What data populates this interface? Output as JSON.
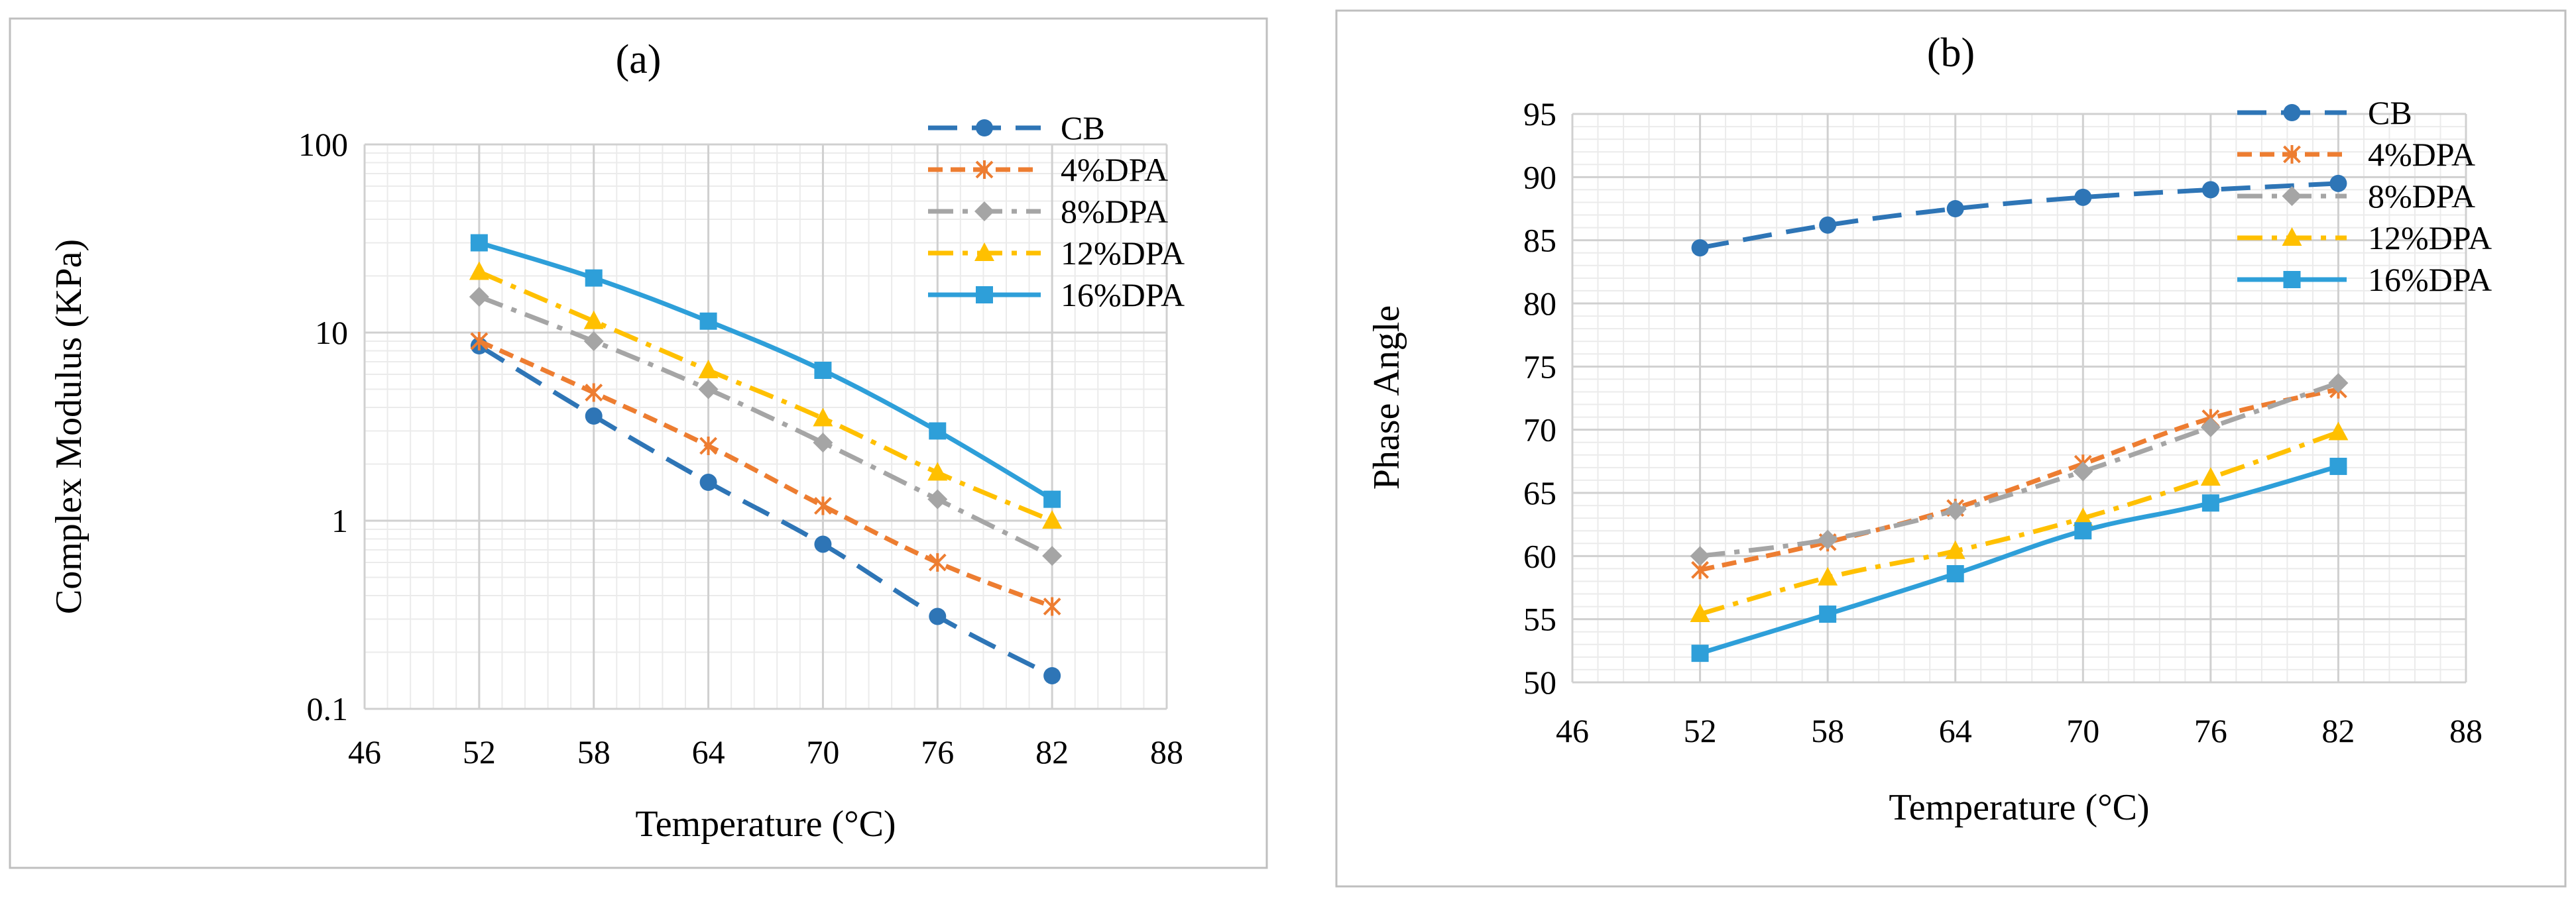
{
  "chart_data": [
    {
      "type": "line",
      "title": "(a)",
      "xlabel": "Temperature (°C)",
      "ylabel": "Complex Modulus (KPa)",
      "xlim": [
        46,
        88
      ],
      "ylim": [
        0.1,
        100
      ],
      "yscale": "log",
      "xticks": [
        46,
        52,
        58,
        64,
        70,
        76,
        82,
        88
      ],
      "xtick_labels": [
        "46",
        "52",
        "58",
        "64",
        "70",
        "76",
        "82",
        "88"
      ],
      "yticks": [
        0.1,
        1,
        10,
        100
      ],
      "ytick_labels": [
        "0.1",
        "1",
        "10",
        "100"
      ],
      "grid": true,
      "legend_position": "top-right",
      "x": [
        52,
        58,
        64,
        70,
        76,
        82
      ],
      "series": [
        {
          "name": "CB",
          "values": [
            8.5,
            3.6,
            1.6,
            0.75,
            0.31,
            0.15
          ]
        },
        {
          "name": "4%DPA",
          "values": [
            9.0,
            4.8,
            2.5,
            1.2,
            0.6,
            0.35
          ]
        },
        {
          "name": "8%DPA",
          "values": [
            15.5,
            9.0,
            5.0,
            2.6,
            1.3,
            0.65
          ]
        },
        {
          "name": "12%DPA",
          "values": [
            21,
            11.5,
            6.3,
            3.5,
            1.8,
            1.0
          ]
        },
        {
          "name": "16%DPA",
          "values": [
            30,
            19.5,
            11.5,
            6.3,
            3.0,
            1.3
          ]
        }
      ]
    },
    {
      "type": "line",
      "title": "(b)",
      "xlabel": "Temperature (°C)",
      "ylabel": "Phase Angle",
      "xlim": [
        46,
        88
      ],
      "ylim": [
        50,
        95
      ],
      "yscale": "linear",
      "xticks": [
        46,
        52,
        58,
        64,
        70,
        76,
        82,
        88
      ],
      "xtick_labels": [
        "46",
        "52",
        "58",
        "64",
        "70",
        "76",
        "82",
        "88"
      ],
      "yticks": [
        50,
        55,
        60,
        65,
        70,
        75,
        80,
        85,
        90,
        95
      ],
      "ytick_labels": [
        "50",
        "55",
        "60",
        "65",
        "70",
        "75",
        "80",
        "85",
        "90",
        "95"
      ],
      "grid": true,
      "legend_position": "top-right",
      "x": [
        52,
        58,
        64,
        70,
        76,
        82
      ],
      "series": [
        {
          "name": "CB",
          "values": [
            84.4,
            86.2,
            87.5,
            88.4,
            89.0,
            89.5
          ]
        },
        {
          "name": "4%DPA",
          "values": [
            58.9,
            61.1,
            63.8,
            67.3,
            70.9,
            73.2
          ]
        },
        {
          "name": "8%DPA",
          "values": [
            60.0,
            61.3,
            63.6,
            66.7,
            70.2,
            73.7
          ]
        },
        {
          "name": "12%DPA",
          "values": [
            55.4,
            58.3,
            60.4,
            63.0,
            66.2,
            69.8
          ]
        },
        {
          "name": "16%DPA",
          "values": [
            52.3,
            55.4,
            58.6,
            62.0,
            64.2,
            67.1
          ]
        }
      ]
    }
  ],
  "styles": [
    {
      "name": "CB",
      "color": "#2E75B6",
      "dash": "dash",
      "marker": "circle"
    },
    {
      "name": "4%DPA",
      "color": "#ED7D31",
      "dash": "short-dash",
      "marker": "x"
    },
    {
      "name": "8%DPA",
      "color": "#A5A5A5",
      "dash": "dash-dot",
      "marker": "diamond"
    },
    {
      "name": "12%DPA",
      "color": "#FFC000",
      "dash": "dash-dot",
      "marker": "triangle"
    },
    {
      "name": "16%DPA",
      "color": "#2E9FD9",
      "dash": "solid",
      "marker": "square"
    }
  ],
  "colors": {
    "grid_major": "#d0d0d0",
    "grid_minor": "#ebebeb",
    "frame": "#bfbfbf"
  }
}
